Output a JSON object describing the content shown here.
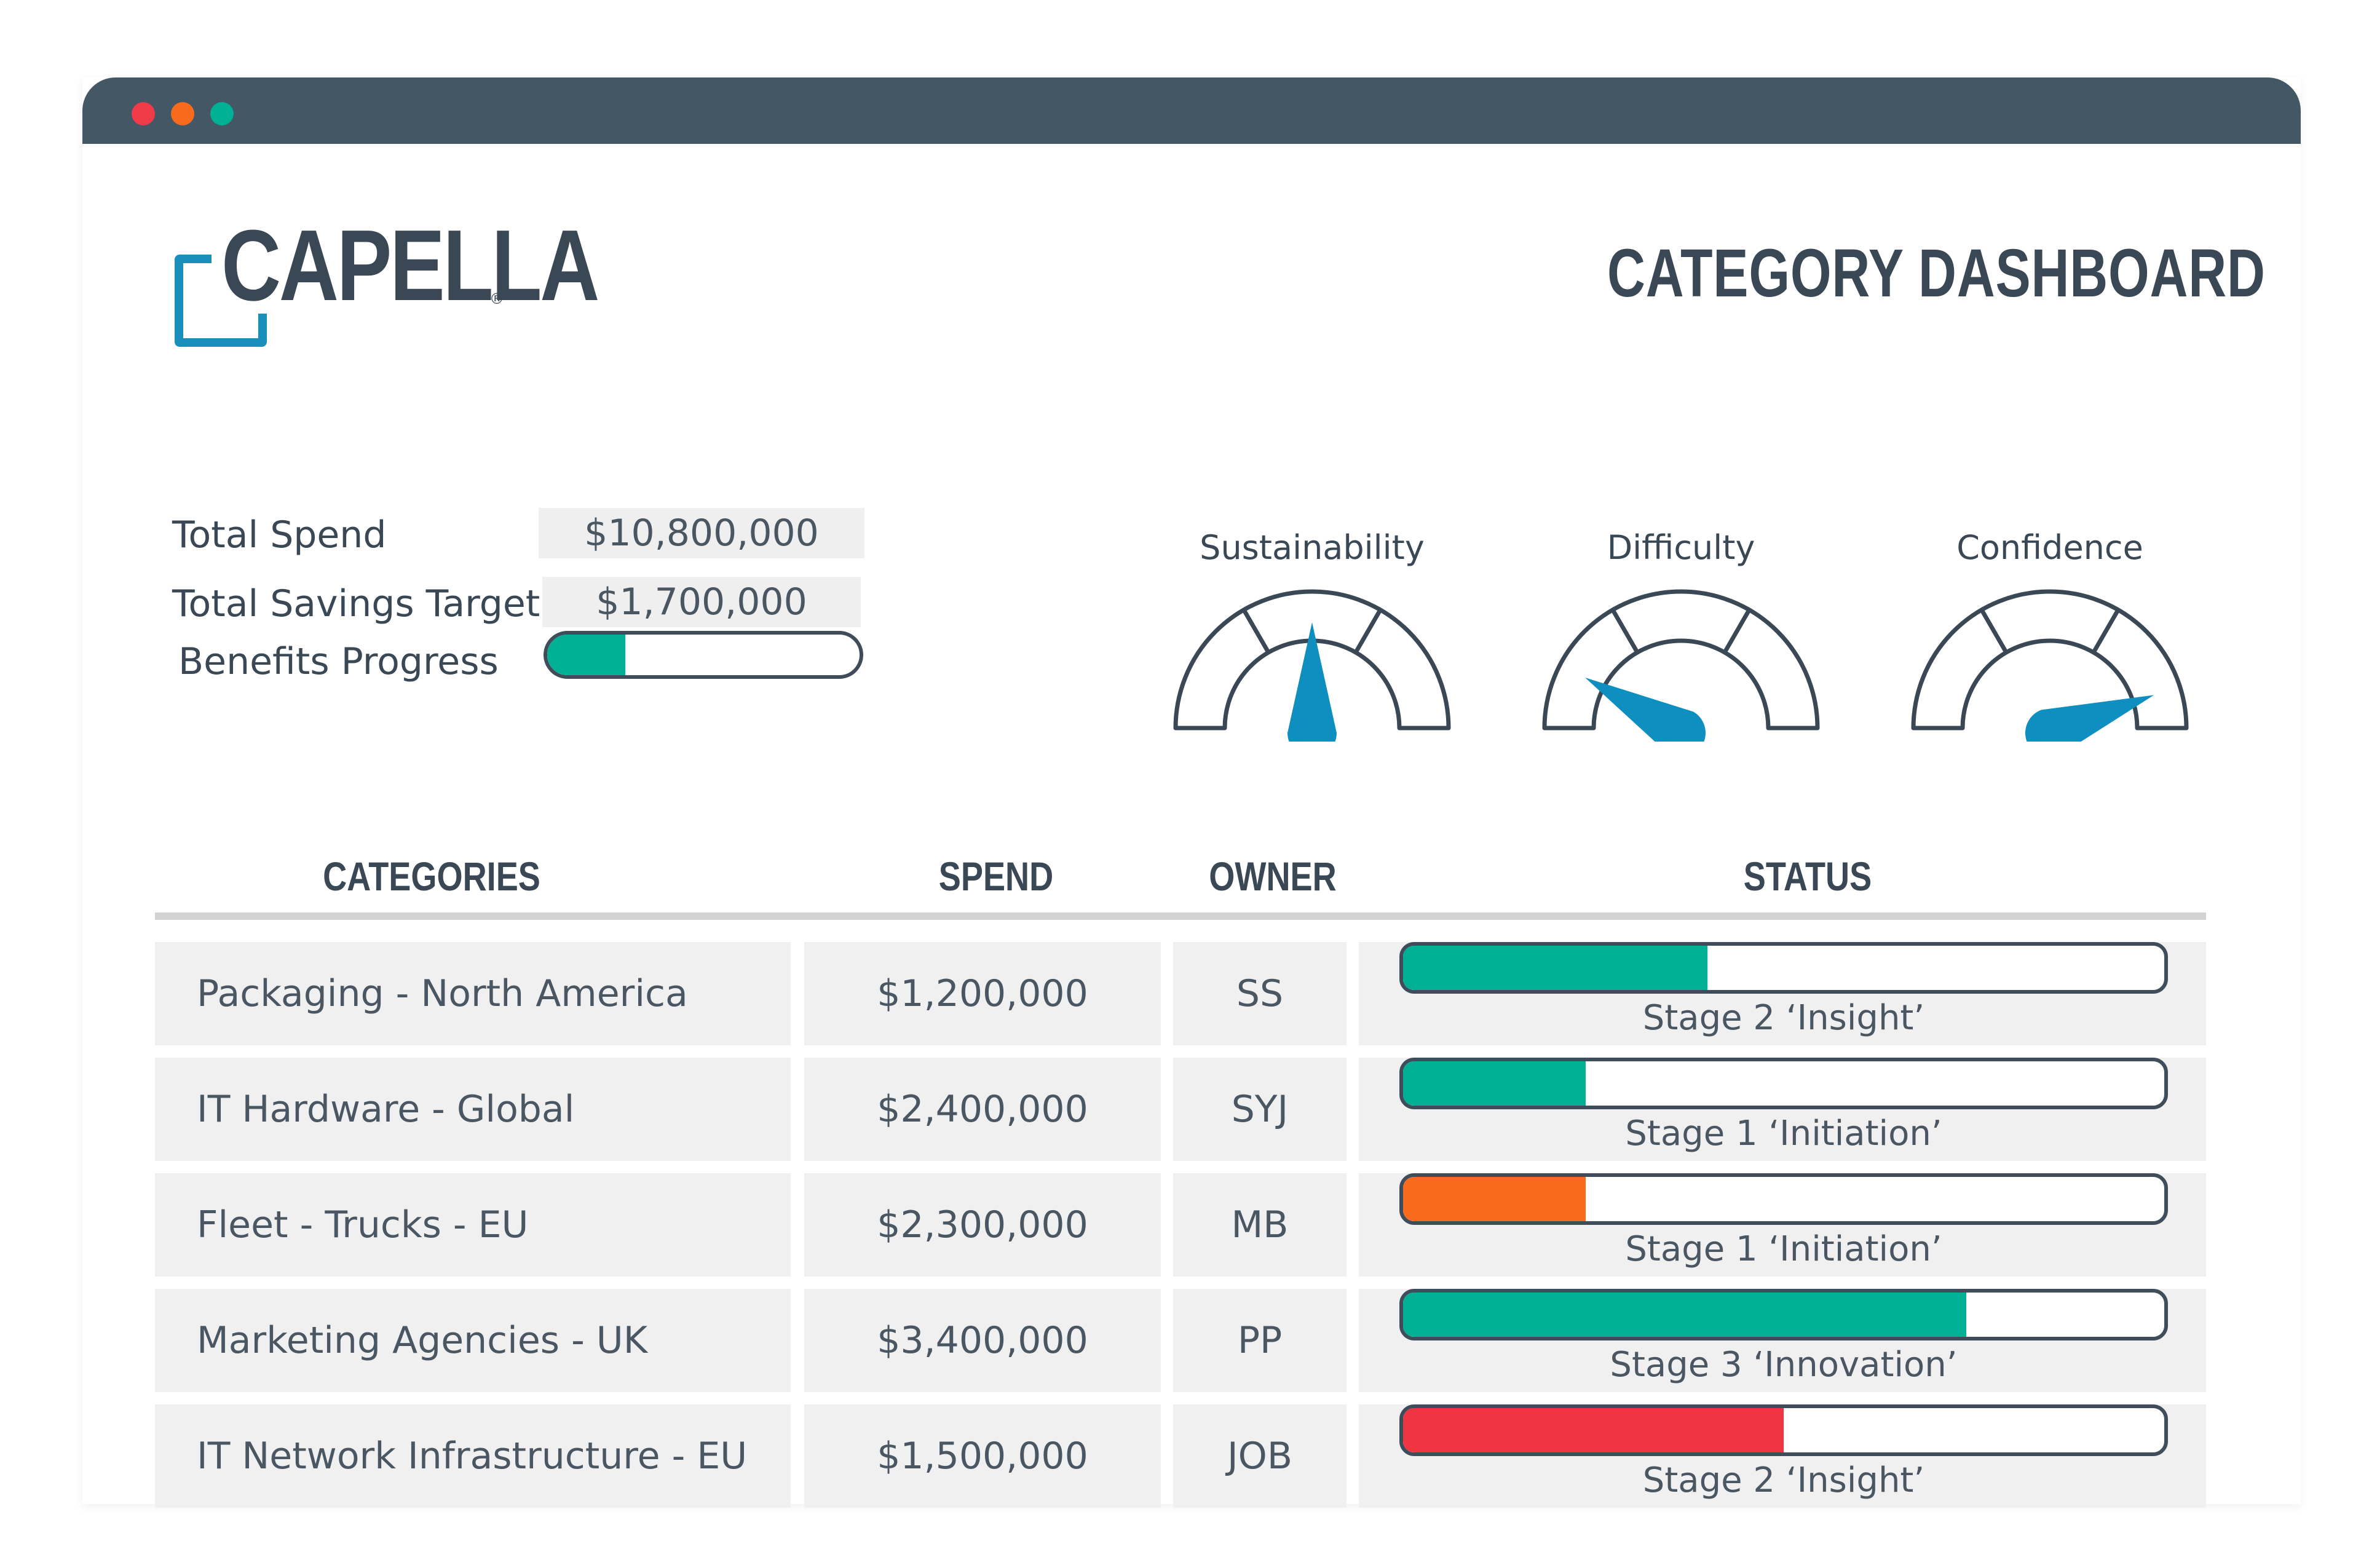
{
  "window": {
    "controls": [
      {
        "name": "close",
        "color": "#f03a47"
      },
      {
        "name": "minimize",
        "color": "#fa6a1c"
      },
      {
        "name": "maximize",
        "color": "#00b095"
      }
    ]
  },
  "brand": {
    "logo_text": "CAPELLA",
    "registered": "®",
    "color": "#1b8fbb"
  },
  "header": {
    "title": "CATEGORY DASHBOARD"
  },
  "summary": {
    "total_spend_label": "Total Spend",
    "total_spend_value": "$10,800,000",
    "savings_target_label": "Total Savings Target",
    "savings_target_value": "$1,700,000",
    "benefits_label": "Benefits Progress",
    "benefits_progress": 0.25
  },
  "gauges": [
    {
      "label": "Sustainability",
      "angle_deg": 90
    },
    {
      "label": "Difficulty",
      "angle_deg": 150
    },
    {
      "label": "Confidence",
      "angle_deg": 20
    }
  ],
  "table": {
    "columns": [
      "CATEGORIES",
      "SPEND",
      "OWNER",
      "STATUS"
    ],
    "rows": [
      {
        "category": "Packaging - North America",
        "spend": "$1,200,000",
        "owner": "SS",
        "status": "Stage 2 ‘Insight’",
        "progress": 0.4,
        "color": "#00b095"
      },
      {
        "category": "IT Hardware - Global",
        "spend": "$2,400,000",
        "owner": "SYJ",
        "status": "Stage 1 ‘Initiation’",
        "progress": 0.24,
        "color": "#00b095"
      },
      {
        "category": "Fleet - Trucks - EU",
        "spend": "$2,300,000",
        "owner": "MB",
        "status": "Stage 1 ‘Initiation’",
        "progress": 0.24,
        "color": "#fa6a1c"
      },
      {
        "category": "Marketing Agencies - UK",
        "spend": "$3,400,000",
        "owner": "PP",
        "status": "Stage 3 ‘Innovation’",
        "progress": 0.74,
        "color": "#00b095"
      },
      {
        "category": "IT Network Infrastructure - EU",
        "spend": "$1,500,000",
        "owner": "JOB",
        "status": "Stage 2 ‘Insight’",
        "progress": 0.5,
        "color": "#ef3442"
      }
    ]
  },
  "colors": {
    "dark": "#3a4855",
    "needle": "#0f8ec0",
    "titlebar": "#435764"
  }
}
